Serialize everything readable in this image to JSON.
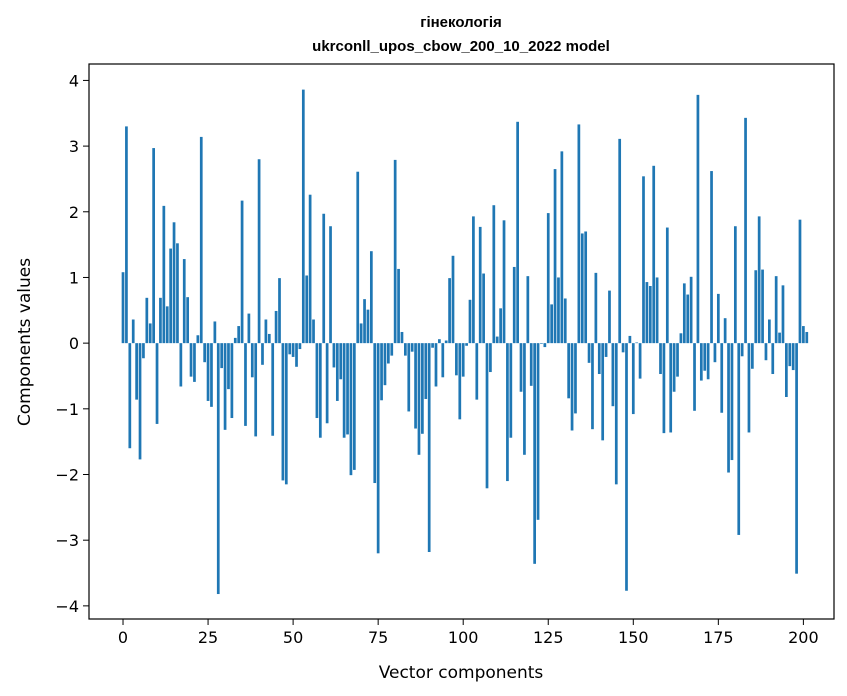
{
  "chart_data": {
    "type": "bar",
    "title_line1": "гінекологія",
    "title_line2": "ukrconll_upos_cbow_200_10_2022 model",
    "xlabel": "Vector components",
    "ylabel": "Components values",
    "xlim": [
      -10,
      209
    ],
    "ylim": [
      -4.2,
      4.25
    ],
    "xticks": [
      0,
      25,
      50,
      75,
      100,
      125,
      150,
      175,
      200
    ],
    "yticks": [
      -4,
      -3,
      -2,
      -1,
      0,
      1,
      2,
      3,
      4
    ],
    "bar_color": "#1f77b4",
    "grid": false,
    "legend": "none",
    "values": [
      1.08,
      3.3,
      -1.6,
      0.36,
      -0.86,
      -1.77,
      -0.23,
      0.69,
      0.3,
      2.97,
      -1.23,
      0.69,
      2.09,
      0.56,
      1.44,
      1.84,
      1.52,
      -0.66,
      1.28,
      0.7,
      -0.51,
      -0.59,
      0.12,
      3.14,
      -0.29,
      -0.88,
      -0.97,
      0.33,
      -3.82,
      -0.38,
      -1.32,
      -0.7,
      -1.14,
      0.08,
      0.26,
      2.17,
      -1.26,
      0.45,
      -0.52,
      -1.42,
      2.8,
      -0.33,
      0.36,
      0.14,
      -1.41,
      0.49,
      0.99,
      -2.09,
      -2.15,
      -0.17,
      -0.21,
      -0.36,
      -0.09,
      3.86,
      1.03,
      2.26,
      0.36,
      -1.14,
      -1.44,
      1.97,
      -1.22,
      1.78,
      -0.37,
      -0.88,
      -0.55,
      -1.44,
      -1.39,
      -2.01,
      -1.93,
      2.61,
      0.3,
      0.67,
      0.51,
      1.4,
      -2.13,
      -3.2,
      -0.87,
      -0.64,
      -0.31,
      -0.19,
      2.79,
      1.13,
      0.17,
      -0.19,
      -1.04,
      -0.13,
      -1.3,
      -1.7,
      -1.38,
      -0.85,
      -3.18,
      -0.07,
      -0.66,
      0.06,
      -0.52,
      0.04,
      0.99,
      1.33,
      -0.49,
      -1.16,
      -0.51,
      -0.04,
      0.66,
      1.93,
      -0.86,
      1.77,
      1.06,
      -2.21,
      -0.44,
      2.1,
      0.1,
      0.53,
      1.87,
      -2.1,
      -1.44,
      1.16,
      3.37,
      -0.74,
      -1.7,
      1.02,
      -0.65,
      -3.36,
      -2.69,
      -0.01,
      -0.06,
      1.98,
      0.59,
      2.65,
      1.0,
      2.92,
      0.68,
      -0.84,
      -1.33,
      -1.07,
      3.33,
      1.67,
      1.7,
      -0.3,
      -1.31,
      1.07,
      -0.47,
      -1.48,
      -0.21,
      0.8,
      -0.96,
      -2.15,
      3.11,
      -0.14,
      -3.77,
      0.11,
      -1.08,
      0.01,
      -0.54,
      2.54,
      0.93,
      0.87,
      2.7,
      1.0,
      -0.47,
      -1.37,
      1.76,
      -1.36,
      -0.74,
      -0.51,
      0.15,
      0.91,
      0.74,
      1.01,
      -1.03,
      3.78,
      -0.57,
      -0.42,
      -0.55,
      2.62,
      -0.29,
      0.75,
      -1.06,
      0.38,
      -1.97,
      -1.78,
      1.78,
      -2.92,
      -0.2,
      3.43,
      -1.36,
      -0.39,
      1.11,
      1.93,
      1.12,
      -0.26,
      0.36,
      -0.47,
      1.02,
      0.16,
      0.88,
      -0.82,
      -0.35,
      -0.41,
      -3.51,
      1.88,
      0.26,
      0.17
    ]
  }
}
